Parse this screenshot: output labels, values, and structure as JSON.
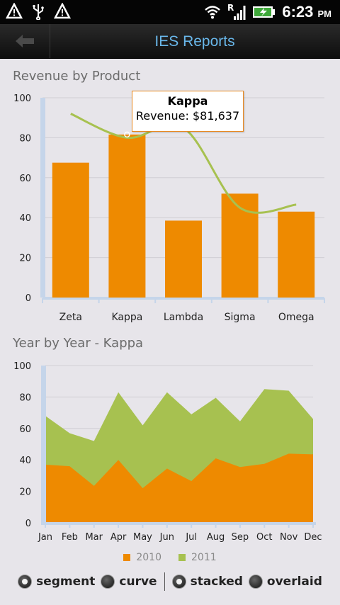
{
  "status_bar": {
    "time": "6:23",
    "ampm": "PM",
    "icons": [
      "warning-icon",
      "usb-icon",
      "warning-icon",
      "wifi-icon",
      "signal-roaming-icon",
      "battery-charging-icon"
    ],
    "roaming_label": "R"
  },
  "header": {
    "title": "IES Reports",
    "back_icon": "back-arrow-icon"
  },
  "revenue_chart": {
    "title": "Revenue by Product",
    "tooltip": {
      "title": "Kappa",
      "value_text": "Revenue: $81,637"
    }
  },
  "yoy_chart": {
    "title": "Year by Year - Kappa"
  },
  "legend": {
    "items": [
      {
        "label": "2010",
        "color": "#ee8a00"
      },
      {
        "label": "2011",
        "color": "#a7c150"
      }
    ]
  },
  "options": {
    "segment": "segment",
    "curve": "curve",
    "stacked": "stacked",
    "overlaid": "overlaid",
    "selected_type": "segment",
    "selected_mode": "stacked"
  },
  "chart_data": [
    {
      "type": "bar",
      "title": "Revenue by Product",
      "categories": [
        "Zeta",
        "Kappa",
        "Lambda",
        "Sigma",
        "Omega"
      ],
      "values": [
        67.5,
        81.6,
        38.5,
        52,
        43
      ],
      "trend_line": [
        92,
        80,
        85,
        45,
        46.5
      ],
      "ylim": [
        0,
        100
      ],
      "yticks": [
        0,
        20,
        40,
        60,
        80,
        100
      ],
      "bar_color": "#ee8a00",
      "line_color": "#a7c150",
      "highlight": "Kappa",
      "grid": true
    },
    {
      "type": "area",
      "title": "Year by Year - Kappa",
      "categories": [
        "Jan",
        "Feb",
        "Mar",
        "Apr",
        "May",
        "Jun",
        "Jul",
        "Aug",
        "Sep",
        "Oct",
        "Nov",
        "Dec"
      ],
      "series": [
        {
          "name": "2010",
          "values": [
            37,
            36,
            23.5,
            40,
            22,
            34.5,
            26.5,
            41,
            35.5,
            37.5,
            44,
            43.5
          ],
          "color": "#ee8a00"
        },
        {
          "name": "2011",
          "values": [
            68,
            57,
            52,
            83,
            62,
            83,
            69,
            79.5,
            64.5,
            85,
            84,
            66
          ],
          "color": "#a7c150"
        }
      ],
      "ylim": [
        0,
        100
      ],
      "yticks": [
        0,
        20,
        40,
        60,
        80,
        100
      ],
      "grid": true,
      "legend_position": "bottom"
    }
  ]
}
